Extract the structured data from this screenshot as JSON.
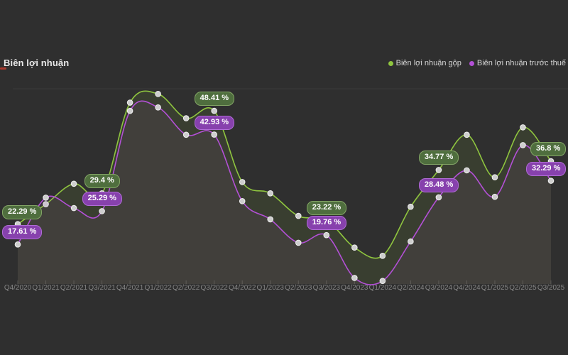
{
  "header": {
    "title": "Biên lợi nhuận"
  },
  "legend": [
    {
      "label": "Biên lợi nhuận gộp",
      "color": "#8fc53f"
    },
    {
      "label": "Biên lợi nhuận trước thuế",
      "color": "#b350d6"
    }
  ],
  "colors": {
    "background": "#2f2f2f",
    "gridline": "#3b3b3b",
    "tick": "#525252",
    "axis_label": "#848484",
    "marker_fill": "#cecece",
    "marker_ring": "#efefef",
    "accent_dash": "#a93a2e",
    "green_line": "#8fc53f",
    "purple_line": "#b350d6",
    "green_label_bg": "#4f6e3e",
    "green_label_border": "#83a566",
    "purple_label_bg": "#8741ad",
    "purple_label_border": "#b06cd6"
  },
  "chart_data": {
    "type": "line",
    "title": "Biên lợi nhuận",
    "xlabel": "",
    "ylabel": "",
    "ylim": [
      8.5,
      53.5
    ],
    "grid": false,
    "legend_position": "top-right",
    "categories": [
      "Q4/2020",
      "Q1/2021",
      "Q2/2021",
      "Q3/2021",
      "Q4/2021",
      "Q1/2022",
      "Q2/2022",
      "Q3/2022",
      "Q4/2022",
      "Q1/2023",
      "Q2/2023",
      "Q3/2023",
      "Q4/2023",
      "Q1/2024",
      "Q2/2024",
      "Q3/2024",
      "Q4/2024",
      "Q1/2025",
      "Q2/2025",
      "Q3/2025"
    ],
    "series": [
      {
        "name": "Biên lợi nhuận gộp",
        "color": "#8fc53f",
        "values": [
          22.29,
          26.9,
          31.6,
          29.4,
          50.3,
          52.3,
          46.7,
          48.41,
          32.0,
          29.4,
          24.2,
          23.22,
          16.9,
          15.0,
          26.3,
          34.77,
          42.9,
          33.1,
          44.6,
          36.8
        ],
        "point_labels": {
          "0": "22.29 %",
          "3": "29.4 %",
          "7": "48.41 %",
          "11": "23.22 %",
          "15": "34.77 %",
          "19": "36.8 %"
        }
      },
      {
        "name": "Biên lợi nhuận trước thuế",
        "color": "#b350d6",
        "values": [
          17.61,
          28.4,
          26.0,
          25.29,
          48.4,
          49.2,
          42.9,
          42.93,
          27.6,
          23.4,
          18.0,
          19.76,
          9.9,
          9.2,
          18.3,
          28.48,
          34.7,
          28.6,
          40.5,
          32.29
        ],
        "point_labels": {
          "0": "17.61 %",
          "3": "25.29 %",
          "7": "42.93 %",
          "11": "19.76 %",
          "15": "28.48 %",
          "19": "32.29 %"
        }
      }
    ]
  }
}
